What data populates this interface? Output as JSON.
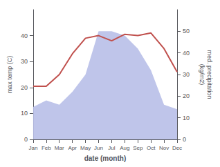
{
  "chart_data": {
    "type": "line",
    "categories": [
      "Jan",
      "Feb",
      "Mar",
      "Apr",
      "May",
      "Jun",
      "Jul",
      "Aug",
      "Sep",
      "Oct",
      "Nov",
      "Dec"
    ],
    "xlabel": "date (month)",
    "ylabel": "max temp (C)",
    "y2label": "med. precipitation\n(kg/m2)",
    "ylim": [
      0,
      50
    ],
    "yticks": [
      0,
      10,
      20,
      30,
      40
    ],
    "y2lim": [
      0,
      60
    ],
    "y2ticks": [
      0,
      10,
      20,
      30,
      40,
      50
    ],
    "grid": false,
    "series": [
      {
        "type": "area",
        "color": "#b8bfe8",
        "axis": "y2",
        "values": [
          15,
          18,
          16,
          22,
          30,
          50,
          50,
          48,
          42,
          32,
          16,
          14
        ]
      },
      {
        "type": "line",
        "color": "#c0504d",
        "values": [
          20.5,
          20.5,
          25,
          33,
          39,
          40,
          38,
          40.5,
          40,
          41,
          35,
          26
        ]
      }
    ]
  }
}
